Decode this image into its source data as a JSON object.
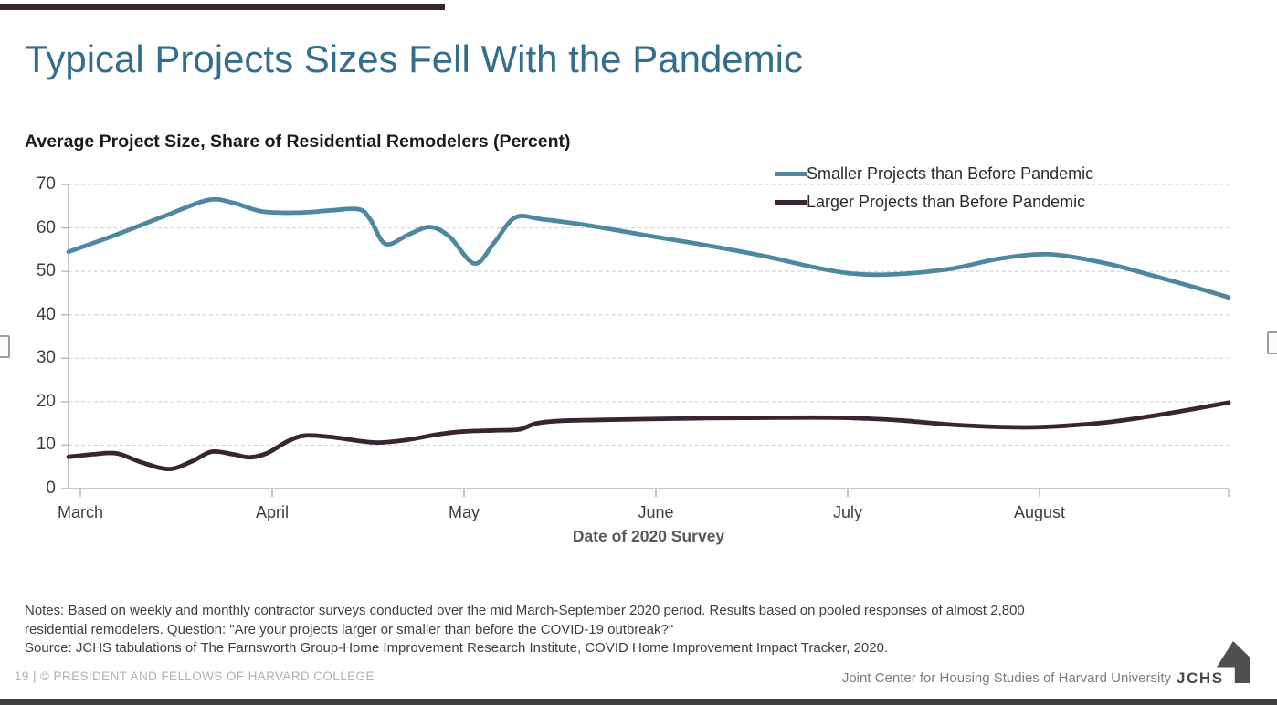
{
  "slide": {
    "title": "Typical Projects Sizes Fell With the Pandemic",
    "chart_title": "Average Project Size, Share of Residential Remodelers (Percent)",
    "notes_lines": [
      "Notes: Based on weekly and monthly contractor surveys conducted over the mid March-September 2020 period. Results based on pooled responses of almost 2,800",
      "residential remodelers. Question: \"Are your projects larger or smaller than before the COVID-19 outbreak?\"",
      "Source: JCHS tabulations of The Farnsworth Group-Home Improvement Research Institute, COVID Home Improvement Impact Tracker, 2020."
    ],
    "footer_left": "19 | © PRESIDENT AND FELLOWS OF HARVARD COLLEGE",
    "footer_right": "Joint Center for Housing Studies of Harvard University",
    "logo_text": "JCHS"
  },
  "colors": {
    "accent_bar": "#38222f",
    "title_teal": "#336e8c",
    "smaller_series": "#4e87a2",
    "larger_series": "#3a2433",
    "gridline": "#d6d6d6",
    "axis": "#b5b5b5",
    "bottom_bar": "#3f3f3f"
  },
  "chart_data": {
    "type": "line",
    "title": "Average Project Size, Share of Residential Remodelers (Percent)",
    "xlabel": "Date of 2020 Survey",
    "ylabel": "",
    "ylim": [
      0,
      70
    ],
    "yticks": [
      0,
      10,
      20,
      30,
      40,
      50,
      60,
      70
    ],
    "x_months": [
      "March",
      "April",
      "May",
      "June",
      "July",
      "August"
    ],
    "x_span_months": 6,
    "grid": "horizontal-dashed",
    "legend_position": "top-right",
    "series": [
      {
        "name": "Smaller Projects than Before Pandemic",
        "color": "#4e87a2",
        "points": [
          [
            0.0,
            54.5
          ],
          [
            0.25,
            58.5
          ],
          [
            0.5,
            62.8
          ],
          [
            0.72,
            66.4
          ],
          [
            0.85,
            65.8
          ],
          [
            1.0,
            63.8
          ],
          [
            1.18,
            63.5
          ],
          [
            1.35,
            64.0
          ],
          [
            1.5,
            64.3
          ],
          [
            1.56,
            62.0
          ],
          [
            1.64,
            56.3
          ],
          [
            1.76,
            58.5
          ],
          [
            1.87,
            60.2
          ],
          [
            1.97,
            58.0
          ],
          [
            2.1,
            51.8
          ],
          [
            2.2,
            56.5
          ],
          [
            2.31,
            62.4
          ],
          [
            2.45,
            62.0
          ],
          [
            2.7,
            60.5
          ],
          [
            3.0,
            58.2
          ],
          [
            3.3,
            56.0
          ],
          [
            3.6,
            53.5
          ],
          [
            3.85,
            51.0
          ],
          [
            4.05,
            49.5
          ],
          [
            4.25,
            49.3
          ],
          [
            4.55,
            50.5
          ],
          [
            4.8,
            52.8
          ],
          [
            5.0,
            53.9
          ],
          [
            5.15,
            53.6
          ],
          [
            5.4,
            51.5
          ],
          [
            5.65,
            48.5
          ],
          [
            5.85,
            46.0
          ],
          [
            6.0,
            44.0
          ]
        ]
      },
      {
        "name": "Larger Projects than Before Pandemic",
        "color": "#3a2433",
        "points": [
          [
            0.0,
            7.3
          ],
          [
            0.13,
            7.9
          ],
          [
            0.25,
            8.1
          ],
          [
            0.38,
            6.0
          ],
          [
            0.52,
            4.5
          ],
          [
            0.64,
            6.3
          ],
          [
            0.74,
            8.5
          ],
          [
            0.85,
            7.9
          ],
          [
            0.94,
            7.2
          ],
          [
            1.03,
            8.2
          ],
          [
            1.13,
            10.8
          ],
          [
            1.22,
            12.2
          ],
          [
            1.35,
            11.9
          ],
          [
            1.5,
            11.0
          ],
          [
            1.6,
            10.6
          ],
          [
            1.75,
            11.2
          ],
          [
            1.9,
            12.4
          ],
          [
            2.03,
            13.1
          ],
          [
            2.2,
            13.4
          ],
          [
            2.33,
            13.6
          ],
          [
            2.42,
            15.0
          ],
          [
            2.55,
            15.6
          ],
          [
            2.75,
            15.8
          ],
          [
            3.0,
            16.0
          ],
          [
            3.3,
            16.2
          ],
          [
            3.6,
            16.3
          ],
          [
            4.0,
            16.3
          ],
          [
            4.3,
            15.7
          ],
          [
            4.6,
            14.6
          ],
          [
            4.9,
            14.1
          ],
          [
            5.1,
            14.3
          ],
          [
            5.4,
            15.4
          ],
          [
            5.7,
            17.4
          ],
          [
            6.0,
            19.8
          ]
        ]
      }
    ]
  }
}
